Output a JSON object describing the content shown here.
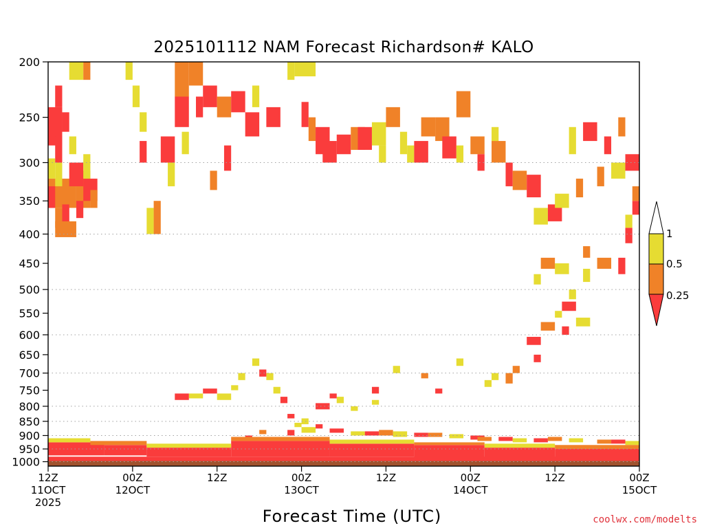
{
  "chart_data": {
    "type": "heatmap",
    "title": "2025101112 NAM Forecast Richardson# KALO",
    "xlabel": "Forecast Time (UTC)",
    "ylabel": "",
    "watermark": "coolwx.com/modelts",
    "xlim": [
      0,
      84
    ],
    "ylim": [
      1018,
      200
    ],
    "x_ticks": [
      {
        "hour": 0,
        "line1": "12Z",
        "line2": "11OCT",
        "line3": "2025"
      },
      {
        "hour": 12,
        "line1": "00Z",
        "line2": "12OCT",
        "line3": ""
      },
      {
        "hour": 24,
        "line1": "12Z",
        "line2": "",
        "line3": ""
      },
      {
        "hour": 36,
        "line1": "00Z",
        "line2": "13OCT",
        "line3": ""
      },
      {
        "hour": 48,
        "line1": "12Z",
        "line2": "",
        "line3": ""
      },
      {
        "hour": 60,
        "line1": "00Z",
        "line2": "14OCT",
        "line3": ""
      },
      {
        "hour": 72,
        "line1": "12Z",
        "line2": "",
        "line3": ""
      },
      {
        "hour": 84,
        "line1": "00Z",
        "line2": "15OCT",
        "line3": ""
      }
    ],
    "y_ticks": [
      200,
      250,
      300,
      350,
      400,
      450,
      500,
      550,
      600,
      650,
      700,
      750,
      800,
      850,
      900,
      950,
      1000
    ],
    "gridlines_hpa": [
      300,
      400,
      500,
      600,
      700,
      800,
      850,
      900,
      950,
      1000
    ],
    "below_ground_hpa": 997,
    "colorbar": {
      "labels": [
        "1",
        "0.5",
        "0.25"
      ],
      "bins": [
        {
          "label": "> 1",
          "color": "#ffffff"
        },
        {
          "label": "0.5 - 1",
          "color": "#e6dc32"
        },
        {
          "label": "0.25 - 0.5",
          "color": "#f08228"
        },
        {
          "label": "< 0.25",
          "color": "#fa3c3c"
        }
      ]
    },
    "colors": {
      "red": "#fa3c3c",
      "orange": "#f08228",
      "yellow": "#e6dc32",
      "ground": "#a0522d",
      "grid": "#a0a0a0",
      "watermark": "#e0313a"
    },
    "class_codes": {
      "1": "< 0.25",
      "2": "0.25 - 0.5",
      "3": "0.5 - 1"
    },
    "cells": [
      [
        0,
        2,
        240,
        280,
        1
      ],
      [
        2,
        3,
        245,
        265,
        1
      ],
      [
        1,
        2,
        220,
        240,
        1
      ],
      [
        3,
        5,
        200,
        215,
        3
      ],
      [
        5,
        6,
        200,
        215,
        2
      ],
      [
        0,
        1,
        295,
        320,
        3
      ],
      [
        1,
        2,
        270,
        300,
        1
      ],
      [
        3,
        4,
        270,
        290,
        3
      ],
      [
        0,
        4,
        320,
        360,
        2
      ],
      [
        4,
        6,
        310,
        360,
        2
      ],
      [
        0,
        1,
        330,
        360,
        1
      ],
      [
        1,
        2,
        300,
        330,
        3
      ],
      [
        1,
        3,
        360,
        390,
        2
      ],
      [
        3,
        5,
        300,
        330,
        1
      ],
      [
        4,
        5,
        350,
        375,
        1
      ],
      [
        5,
        7,
        320,
        350,
        1
      ],
      [
        5,
        6,
        290,
        320,
        3
      ],
      [
        2,
        3,
        355,
        390,
        1
      ],
      [
        1,
        4,
        380,
        405,
        2
      ],
      [
        6,
        7,
        335,
        360,
        2
      ],
      [
        11,
        12,
        200,
        215,
        3
      ],
      [
        12,
        13,
        220,
        240,
        3
      ],
      [
        13,
        14,
        275,
        300,
        1
      ],
      [
        13,
        14,
        245,
        265,
        3
      ],
      [
        14,
        15,
        360,
        400,
        3
      ],
      [
        15,
        16,
        350,
        400,
        2
      ],
      [
        16,
        18,
        270,
        300,
        1
      ],
      [
        17,
        18,
        300,
        330,
        3
      ],
      [
        18,
        20,
        230,
        260,
        1
      ],
      [
        18,
        20,
        200,
        230,
        2
      ],
      [
        19,
        20,
        265,
        290,
        3
      ],
      [
        20,
        22,
        200,
        220,
        2
      ],
      [
        21,
        22,
        230,
        250,
        1
      ],
      [
        22,
        24,
        220,
        240,
        1
      ],
      [
        24,
        26,
        230,
        250,
        2
      ],
      [
        23,
        24,
        310,
        335,
        2
      ],
      [
        25,
        26,
        280,
        310,
        1
      ],
      [
        26,
        28,
        225,
        245,
        1
      ],
      [
        28,
        30,
        245,
        270,
        1
      ],
      [
        29,
        30,
        220,
        240,
        3
      ],
      [
        31,
        33,
        240,
        260,
        1
      ],
      [
        34,
        35,
        200,
        215,
        3
      ],
      [
        35,
        38,
        200,
        212,
        3
      ],
      [
        36,
        37,
        235,
        260,
        1
      ],
      [
        37,
        38,
        250,
        275,
        2
      ],
      [
        38,
        40,
        260,
        290,
        1
      ],
      [
        39,
        41,
        275,
        300,
        1
      ],
      [
        41,
        43,
        268,
        290,
        1
      ],
      [
        43,
        45,
        260,
        285,
        2
      ],
      [
        44,
        46,
        260,
        285,
        1
      ],
      [
        46,
        48,
        255,
        280,
        3
      ],
      [
        47,
        48,
        280,
        300,
        3
      ],
      [
        48,
        50,
        240,
        260,
        2
      ],
      [
        50,
        51,
        265,
        290,
        3
      ],
      [
        51,
        52,
        280,
        300,
        3
      ],
      [
        52,
        54,
        275,
        300,
        1
      ],
      [
        53,
        55,
        250,
        270,
        2
      ],
      [
        55,
        57,
        250,
        275,
        2
      ],
      [
        56,
        58,
        270,
        295,
        1
      ],
      [
        58,
        60,
        225,
        250,
        2
      ],
      [
        58,
        59,
        280,
        300,
        3
      ],
      [
        60,
        62,
        270,
        290,
        2
      ],
      [
        61,
        62,
        290,
        310,
        1
      ],
      [
        63,
        64,
        260,
        290,
        3
      ],
      [
        63,
        65,
        275,
        300,
        2
      ],
      [
        65,
        66,
        300,
        330,
        1
      ],
      [
        66,
        68,
        310,
        335,
        2
      ],
      [
        68,
        70,
        315,
        345,
        1
      ],
      [
        69,
        71,
        360,
        385,
        3
      ],
      [
        71,
        73,
        355,
        380,
        1
      ],
      [
        72,
        74,
        340,
        360,
        3
      ],
      [
        74,
        75,
        260,
        290,
        3
      ],
      [
        75,
        76,
        320,
        345,
        2
      ],
      [
        76,
        78,
        255,
        275,
        1
      ],
      [
        78,
        79,
        305,
        330,
        2
      ],
      [
        79,
        80,
        270,
        290,
        1
      ],
      [
        80,
        82,
        300,
        320,
        3
      ],
      [
        81,
        82,
        250,
        270,
        2
      ],
      [
        82,
        84,
        290,
        310,
        1
      ],
      [
        83,
        84,
        350,
        370,
        1
      ],
      [
        83,
        84,
        330,
        350,
        2
      ],
      [
        82,
        83,
        390,
        415,
        1
      ],
      [
        82,
        83,
        370,
        390,
        3
      ],
      [
        81,
        82,
        440,
        470,
        1
      ],
      [
        78,
        80,
        440,
        460,
        2
      ],
      [
        76,
        77,
        460,
        485,
        3
      ],
      [
        76,
        77,
        420,
        440,
        2
      ],
      [
        72,
        74,
        450,
        470,
        3
      ],
      [
        70,
        72,
        440,
        460,
        2
      ],
      [
        69,
        70,
        470,
        490,
        3
      ],
      [
        74,
        75,
        500,
        520,
        3
      ],
      [
        75,
        77,
        560,
        580,
        3
      ],
      [
        73,
        75,
        525,
        545,
        1
      ],
      [
        72,
        73,
        545,
        560,
        3
      ],
      [
        73,
        74,
        580,
        600,
        1
      ],
      [
        70,
        72,
        570,
        590,
        2
      ],
      [
        68,
        70,
        605,
        625,
        1
      ],
      [
        66,
        67,
        680,
        700,
        2
      ],
      [
        65,
        66,
        700,
        730,
        2
      ],
      [
        69,
        70,
        650,
        670,
        1
      ],
      [
        63,
        64,
        700,
        720,
        3
      ],
      [
        62,
        63,
        720,
        740,
        3
      ],
      [
        58,
        59,
        660,
        680,
        3
      ],
      [
        55,
        56,
        745,
        760,
        1
      ],
      [
        53,
        54,
        700,
        715,
        2
      ],
      [
        49,
        50,
        680,
        700,
        3
      ],
      [
        46,
        47,
        740,
        760,
        1
      ],
      [
        46,
        47,
        780,
        795,
        3
      ],
      [
        43,
        44,
        800,
        815,
        3
      ],
      [
        41,
        42,
        770,
        790,
        3
      ],
      [
        40,
        41,
        760,
        775,
        1
      ],
      [
        38,
        40,
        790,
        810,
        1
      ],
      [
        36,
        37,
        840,
        860,
        3
      ],
      [
        35,
        36,
        855,
        870,
        3
      ],
      [
        34,
        35,
        825,
        840,
        1
      ],
      [
        33,
        34,
        770,
        790,
        1
      ],
      [
        32,
        33,
        740,
        760,
        3
      ],
      [
        31,
        32,
        700,
        720,
        3
      ],
      [
        30,
        31,
        690,
        710,
        1
      ],
      [
        29,
        30,
        660,
        680,
        3
      ],
      [
        27,
        28,
        700,
        720,
        3
      ],
      [
        26,
        27,
        735,
        750,
        3
      ],
      [
        24,
        26,
        760,
        780,
        3
      ],
      [
        22,
        24,
        745,
        760,
        1
      ],
      [
        20,
        22,
        760,
        775,
        3
      ],
      [
        18,
        20,
        760,
        780,
        1
      ],
      [
        34,
        35,
        880,
        900,
        1
      ],
      [
        36,
        38,
        870,
        890,
        3
      ],
      [
        38,
        39,
        860,
        875,
        1
      ],
      [
        40,
        42,
        875,
        890,
        1
      ],
      [
        43,
        45,
        885,
        900,
        3
      ],
      [
        45,
        47,
        885,
        900,
        1
      ],
      [
        47,
        49,
        880,
        900,
        2
      ],
      [
        49,
        51,
        885,
        905,
        3
      ],
      [
        52,
        54,
        890,
        905,
        1
      ],
      [
        54,
        56,
        890,
        905,
        2
      ],
      [
        57,
        59,
        895,
        910,
        3
      ],
      [
        60,
        62,
        900,
        915,
        1
      ],
      [
        61,
        63,
        905,
        920,
        2
      ],
      [
        64,
        66,
        905,
        920,
        1
      ],
      [
        66,
        68,
        910,
        925,
        3
      ],
      [
        69,
        71,
        910,
        925,
        1
      ],
      [
        71,
        73,
        905,
        920,
        2
      ],
      [
        74,
        76,
        910,
        925,
        3
      ],
      [
        78,
        80,
        915,
        930,
        2
      ],
      [
        80,
        82,
        915,
        930,
        1
      ],
      [
        82,
        84,
        920,
        935,
        3
      ],
      [
        30,
        31,
        880,
        895,
        2
      ],
      [
        28,
        29,
        900,
        915,
        1
      ]
    ]
  }
}
